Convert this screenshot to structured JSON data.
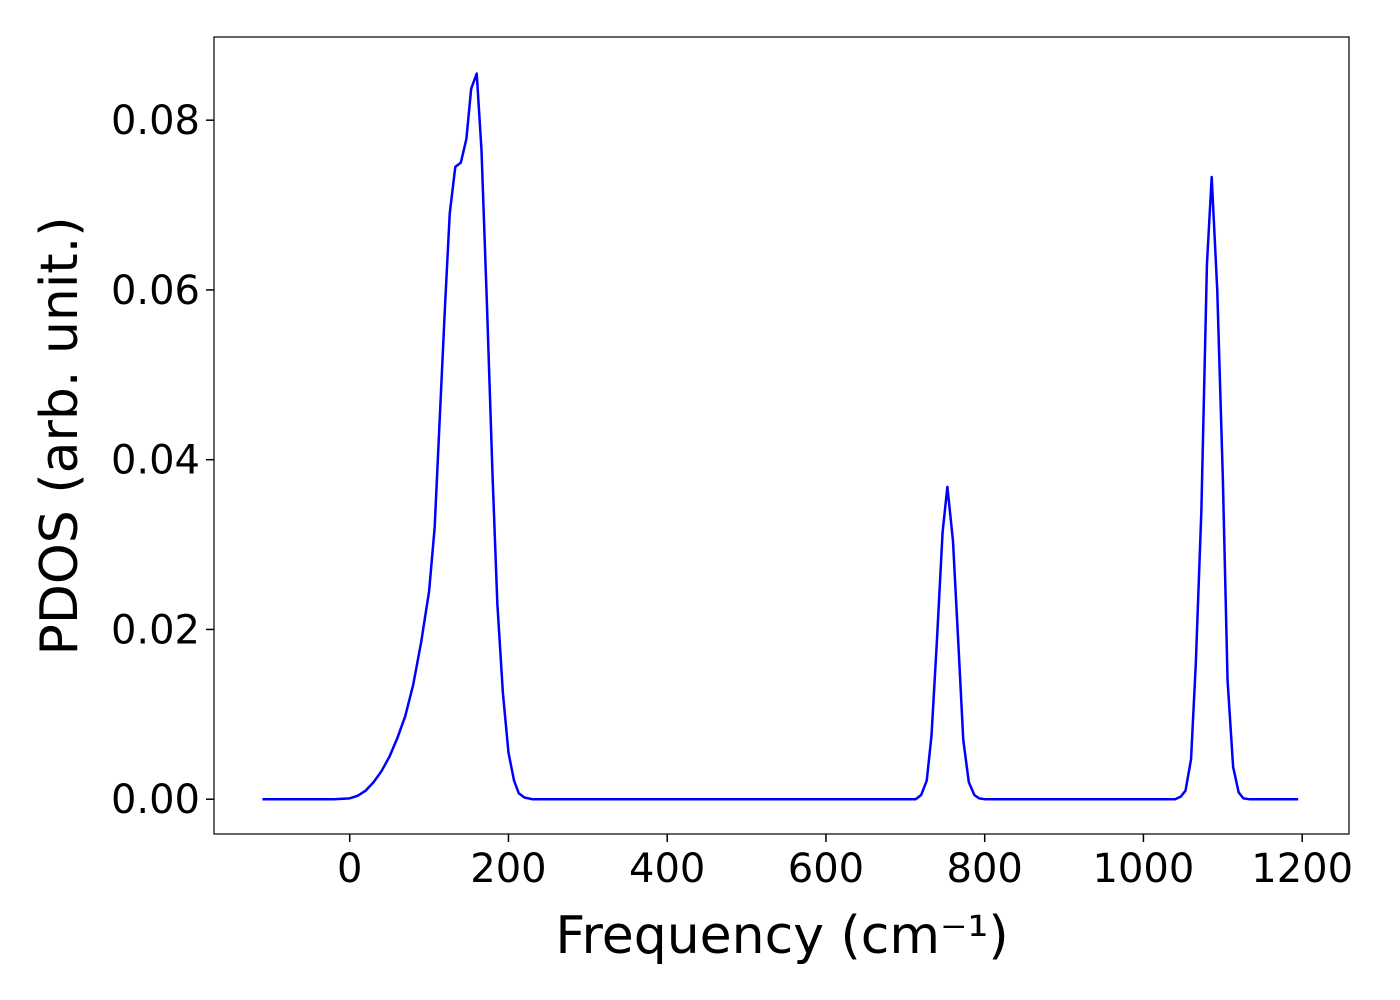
{
  "chart_data": {
    "type": "line",
    "xlabel": "Frequency (cm⁻¹)",
    "ylabel": "PDOS (arb. unit.)",
    "x": [
      -110,
      -20,
      0,
      10,
      20,
      30,
      40,
      50,
      60,
      70,
      80,
      90,
      100,
      107,
      113,
      120,
      126,
      133,
      140,
      147,
      153,
      160,
      166,
      173,
      180,
      186,
      193,
      200,
      207,
      213,
      220,
      230,
      700,
      713,
      720,
      727,
      733,
      740,
      747,
      753,
      760,
      767,
      773,
      780,
      787,
      793,
      800,
      1040,
      1047,
      1053,
      1060,
      1066,
      1073,
      1080,
      1086,
      1093,
      1100,
      1106,
      1113,
      1120,
      1126,
      1133,
      1195
    ],
    "series": [
      {
        "color": "#0000ff",
        "values": [
          0,
          0,
          0.0001,
          0.0004,
          0.001,
          0.002,
          0.0033,
          0.005,
          0.0072,
          0.0098,
          0.0135,
          0.0185,
          0.0245,
          0.032,
          0.044,
          0.058,
          0.069,
          0.0745,
          0.075,
          0.0778,
          0.0837,
          0.0855,
          0.0765,
          0.058,
          0.038,
          0.023,
          0.0125,
          0.0055,
          0.0022,
          0.0007,
          0.0002,
          0,
          0,
          0,
          0.0005,
          0.0022,
          0.0075,
          0.019,
          0.0315,
          0.0368,
          0.0305,
          0.018,
          0.007,
          0.002,
          0.0005,
          0.0001,
          0,
          0,
          0.0003,
          0.001,
          0.0047,
          0.016,
          0.034,
          0.063,
          0.0733,
          0.06,
          0.038,
          0.014,
          0.0038,
          0.0008,
          0.0001,
          0,
          0
        ]
      }
    ],
    "xlim": [
      -171,
      1259
    ],
    "ylim": [
      -0.0041,
      0.0898
    ],
    "xticks": [
      0,
      200,
      400,
      600,
      800,
      1000,
      1200
    ],
    "yticks": [
      {
        "value": 0,
        "label": "0.00"
      },
      0.02,
      0.04,
      0.06,
      0.08
    ]
  }
}
